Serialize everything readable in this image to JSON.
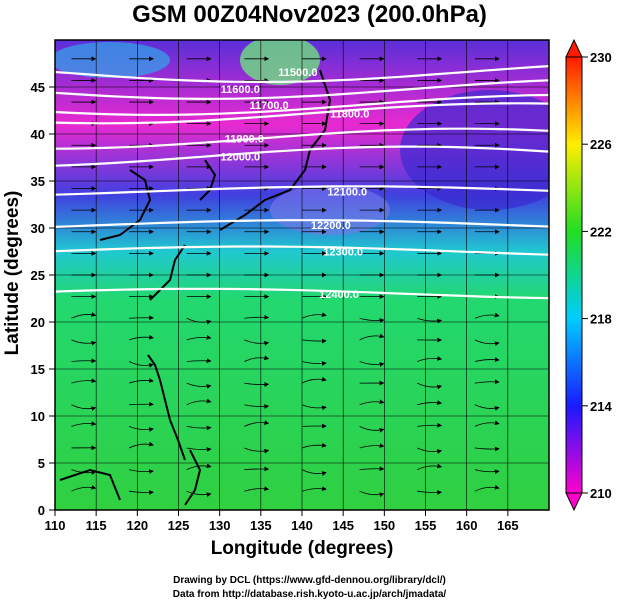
{
  "title": "GSM 00Z04Nov2023 (200.0hPa)",
  "xlabel": "Longitude (degrees)",
  "ylabel": "Latitude  (degrees)",
  "credit_line1": "Drawing by DCL (https://www.gfd-dennou.org/library/dcl/)",
  "credit_line2": "Data from http://database.rish.kyoto-u.ac.jp/arch/jmadata/",
  "chart_data": {
    "type": "heatmap",
    "variable": "temperature with geopotential height contours and streamlines",
    "xlim": [
      110,
      170
    ],
    "ylim": [
      0,
      50
    ],
    "x_ticks": [
      "110",
      "115",
      "120",
      "125",
      "130",
      "135",
      "140",
      "145",
      "150",
      "155",
      "160",
      "165"
    ],
    "y_ticks": [
      "0",
      "5",
      "10",
      "15",
      "20",
      "25",
      "30",
      "35",
      "40",
      "45"
    ],
    "colorbar": {
      "range": [
        210,
        230
      ],
      "ticks": [
        "210",
        "214",
        "218",
        "222",
        "226",
        "230"
      ],
      "colors": [
        "#ff00cc",
        "#1a1aff",
        "#00ccff",
        "#22dd22",
        "#ffee00",
        "#ff1a00"
      ]
    },
    "contours": [
      {
        "label": "11500.0",
        "label_lon": 139.5,
        "label_lat": 46.6
      },
      {
        "label": "11600.0",
        "label_lon": 132.5,
        "label_lat": 44.8
      },
      {
        "label": "11700.0",
        "label_lon": 136.0,
        "label_lat": 43.1
      },
      {
        "label": "11800.0",
        "label_lon": 145.8,
        "label_lat": 42.2
      },
      {
        "label": "11900.0",
        "label_lon": 133.0,
        "label_lat": 39.5
      },
      {
        "label": "12000.0",
        "label_lon": 132.5,
        "label_lat": 37.6
      },
      {
        "label": "12100.0",
        "label_lon": 145.5,
        "label_lat": 33.9
      },
      {
        "label": "12200.0",
        "label_lon": 143.5,
        "label_lat": 30.3
      },
      {
        "label": "12300.0",
        "label_lon": 145.0,
        "label_lat": 27.5
      },
      {
        "label": "12400.0",
        "label_lon": 144.5,
        "label_lat": 23.0
      }
    ]
  }
}
